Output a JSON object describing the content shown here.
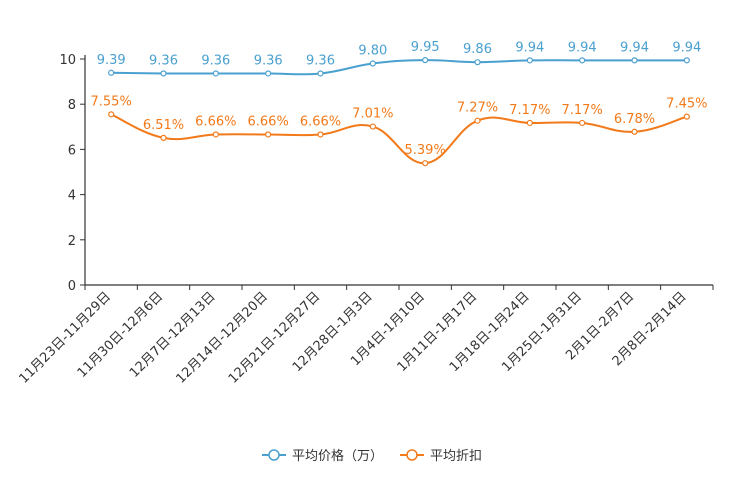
{
  "chart_data": {
    "type": "line",
    "title": "",
    "xlabel": "",
    "ylabel": "",
    "ylim": [
      0,
      10
    ],
    "yticks": [
      "0",
      "2",
      "4",
      "6",
      "8",
      "10"
    ],
    "grid": false,
    "legend_position": "bottom-center",
    "categories": [
      "11月23日-11月29日",
      "11月30日-12月6日",
      "12月7日-12月13日",
      "12月14日-12月20日",
      "12月21日-12月27日",
      "12月28日-1月3日",
      "1月4日-1月10日",
      "1月11日-1月17日",
      "1月18日-1月24日",
      "1月25日-1月31日",
      "2月1日-2月7日",
      "2月8日-2月14日"
    ],
    "series": [
      {
        "name": "平均价格（万）",
        "color": "#4aa0cf",
        "values": [
          9.39,
          9.36,
          9.36,
          9.36,
          9.36,
          9.8,
          9.95,
          9.86,
          9.94,
          9.94,
          9.94,
          9.94
        ],
        "labels": [
          "9.39",
          "9.36",
          "9.36",
          "9.36",
          "9.36",
          "9.80",
          "9.95",
          "9.86",
          "9.94",
          "9.94",
          "9.94",
          "9.94"
        ]
      },
      {
        "name": "平均折扣",
        "color": "#f27a1a",
        "values": [
          7.55,
          6.51,
          6.66,
          6.66,
          6.66,
          7.01,
          5.39,
          7.27,
          7.17,
          7.17,
          6.78,
          7.45
        ],
        "labels": [
          "7.55%",
          "6.51%",
          "6.66%",
          "6.66%",
          "6.66%",
          "7.01%",
          "5.39%",
          "7.27%",
          "7.17%",
          "7.17%",
          "6.78%",
          "7.45%"
        ]
      }
    ]
  }
}
